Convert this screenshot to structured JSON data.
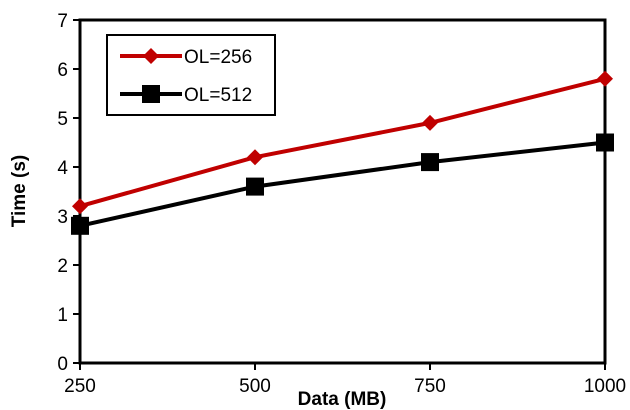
{
  "chart_data": {
    "type": "line",
    "title": "",
    "xlabel": "Data (MB)",
    "ylabel": "Time (s)",
    "x": [
      250,
      500,
      750,
      1000
    ],
    "xlim": [
      250,
      1000
    ],
    "ylim": [
      0,
      7
    ],
    "x_ticks": [
      "250",
      "500",
      "750",
      "1000"
    ],
    "y_ticks": [
      "0",
      "1",
      "2",
      "3",
      "4",
      "5",
      "6",
      "7"
    ],
    "grid": false,
    "legend_position": "top-left",
    "series": [
      {
        "name": "OL=256",
        "values": [
          3.2,
          4.2,
          4.9,
          5.8
        ],
        "color": "#C00000",
        "marker": "diamond"
      },
      {
        "name": "OL=512",
        "values": [
          2.8,
          3.6,
          4.1,
          4.5
        ],
        "color": "#000000",
        "marker": "square"
      }
    ]
  }
}
